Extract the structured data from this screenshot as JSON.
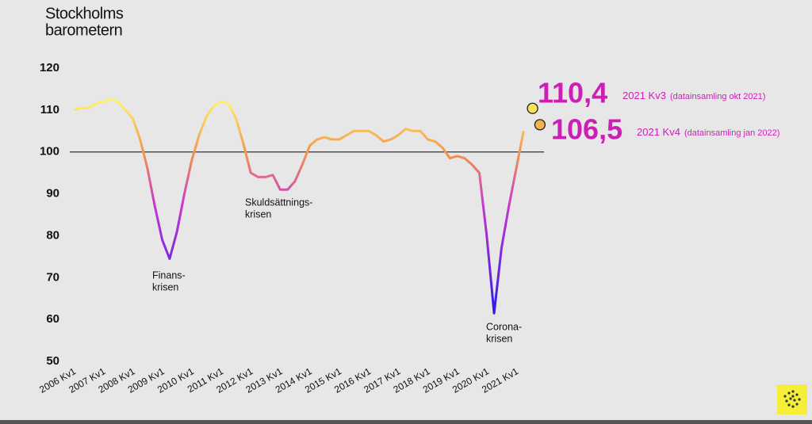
{
  "chart_data": {
    "type": "line",
    "title_lines": [
      "Stockholms",
      "barometern"
    ],
    "categories": [
      "2006 Kv1",
      null,
      null,
      null,
      "2007 Kv1",
      null,
      null,
      null,
      "2008 Kv1",
      null,
      null,
      null,
      "2009 Kv1",
      null,
      null,
      null,
      "2010 Kv1",
      null,
      null,
      null,
      "2011 Kv1",
      null,
      null,
      null,
      "2012 Kv1",
      null,
      null,
      null,
      "2013 Kv1",
      null,
      null,
      null,
      "2014 Kv1",
      null,
      null,
      null,
      "2015 Kv1",
      null,
      null,
      null,
      "2016 Kv1",
      null,
      null,
      null,
      "2017 Kv1",
      null,
      null,
      null,
      "2018 Kv1",
      null,
      null,
      null,
      "2019 Kv1",
      null,
      null,
      null,
      "2020 Kv1",
      null,
      null,
      null,
      "2021 Kv1",
      null
    ],
    "values": [
      110,
      110.5,
      110.5,
      111.5,
      112,
      112.5,
      112,
      110,
      108,
      103,
      96,
      87,
      79,
      74.5,
      81,
      90,
      98,
      104,
      108.5,
      111,
      112,
      111.5,
      108,
      102,
      95,
      94,
      94,
      94.5,
      91,
      91,
      93,
      97,
      101.5,
      103,
      103.5,
      103,
      103,
      104,
      105,
      105,
      105,
      104,
      102.5,
      103,
      104,
      105.5,
      105,
      105,
      103,
      102.5,
      101,
      98.5,
      99,
      98.5,
      97,
      95,
      80,
      61.5,
      77,
      87,
      96,
      105
    ],
    "ylim": [
      50,
      120
    ],
    "yticks": [
      50,
      60,
      70,
      80,
      90,
      100,
      110,
      120
    ],
    "reference_line": 100,
    "annotations": [
      [
        "Finans-",
        "krisen"
      ],
      [
        "Skuldsättnings-",
        "krisen"
      ],
      [
        "Corona-",
        "krisen"
      ]
    ],
    "highlights": [
      {
        "value": 110.4,
        "label": "110,4",
        "period": "2021 Kv3",
        "note": "(datainsamling okt 2021)",
        "color": "#f7e35a"
      },
      {
        "value": 106.5,
        "label": "106,5",
        "period": "2021 Kv4",
        "note": "(datainsamling jan 2022)",
        "color": "#f2b24e"
      }
    ]
  }
}
